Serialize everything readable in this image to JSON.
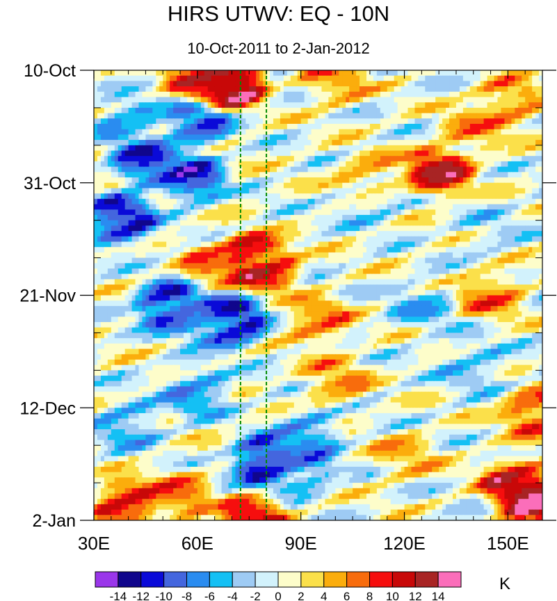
{
  "chart_data": {
    "type": "heatmap",
    "title": "HIRS UTWV: EQ - 10N",
    "subtitle": "10-Oct-2011 to 2-Jan-2012",
    "xlabel": "",
    "ylabel": "",
    "x_range": [
      30,
      160
    ],
    "y_range_days_since_10Oct2011": [
      0,
      84
    ],
    "x_ticks": [
      {
        "value": 30,
        "label": "30E"
      },
      {
        "value": 60,
        "label": "60E"
      },
      {
        "value": 90,
        "label": "90E"
      },
      {
        "value": 120,
        "label": "120E"
      },
      {
        "value": 150,
        "label": "150E"
      }
    ],
    "y_ticks": [
      {
        "value": 0,
        "label": "10-Oct"
      },
      {
        "value": 21,
        "label": "31-Oct"
      },
      {
        "value": 42,
        "label": "21-Nov"
      },
      {
        "value": 63,
        "label": "12-Dec"
      },
      {
        "value": 84,
        "label": "2-Jan"
      }
    ],
    "reference_lines_x": [
      72.5,
      80
    ],
    "colorbar": {
      "units": "K",
      "levels": [
        -14,
        -12,
        -10,
        -8,
        -6,
        -4,
        -2,
        0,
        2,
        4,
        6,
        8,
        10,
        12,
        14
      ],
      "labels": [
        "-14",
        "-12",
        "-10",
        "-8",
        "-6",
        "-4",
        "-2",
        "0",
        "2",
        "4",
        "6",
        "8",
        "10",
        "12",
        "14"
      ],
      "colors": [
        "#9a36ea",
        "#10068c",
        "#0a0ad8",
        "#4466de",
        "#2a8cf0",
        "#14c0f4",
        "#9ecbf4",
        "#d2f2fc",
        "#fdfdca",
        "#fbe04a",
        "#fbad0c",
        "#f86c0c",
        "#f60e0e",
        "#c80808",
        "#a82424",
        "#fb6eba"
      ]
    },
    "features": [
      {
        "lon": 70,
        "day": 2,
        "value": 15
      },
      {
        "lon": 66,
        "day": 3,
        "value": 10
      },
      {
        "lon": 60,
        "day": 1,
        "value": 8
      },
      {
        "lon": 100,
        "day": 2,
        "value": 5
      },
      {
        "lon": 75,
        "day": 35,
        "value": 12
      },
      {
        "lon": 80,
        "day": 37,
        "value": 9
      },
      {
        "lon": 65,
        "day": 36,
        "value": 6
      },
      {
        "lon": 130,
        "day": 19,
        "value": 11
      },
      {
        "lon": 110,
        "day": 20,
        "value": 5
      },
      {
        "lon": 140,
        "day": 11,
        "value": 5
      },
      {
        "lon": 150,
        "day": 6,
        "value": 6
      },
      {
        "lon": 157,
        "day": 80,
        "value": 15
      },
      {
        "lon": 152,
        "day": 77,
        "value": 10
      },
      {
        "lon": 40,
        "day": 81,
        "value": 10
      },
      {
        "lon": 55,
        "day": 79,
        "value": 6
      },
      {
        "lon": 76,
        "day": 84,
        "value": 10
      },
      {
        "lon": 95,
        "day": 47,
        "value": 6
      },
      {
        "lon": 100,
        "day": 58,
        "value": 5
      },
      {
        "lon": 158,
        "day": 64,
        "value": 8
      },
      {
        "lon": 120,
        "day": 72,
        "value": 4
      },
      {
        "lon": 145,
        "day": 42,
        "value": 6
      },
      {
        "lon": 45,
        "day": 17,
        "value": -10
      },
      {
        "lon": 58,
        "day": 20,
        "value": -10
      },
      {
        "lon": 38,
        "day": 28,
        "value": -11
      },
      {
        "lon": 52,
        "day": 44,
        "value": -11
      },
      {
        "lon": 70,
        "day": 47,
        "value": -12
      },
      {
        "lon": 63,
        "day": 46,
        "value": -8
      },
      {
        "lon": 80,
        "day": 73,
        "value": -12
      },
      {
        "lon": 90,
        "day": 74,
        "value": -7
      },
      {
        "lon": 60,
        "day": 60,
        "value": -6
      },
      {
        "lon": 92,
        "day": 68,
        "value": -6
      },
      {
        "lon": 60,
        "day": 10,
        "value": -8
      },
      {
        "lon": 40,
        "day": 10,
        "value": -6
      },
      {
        "lon": 40,
        "day": 66,
        "value": -5
      },
      {
        "lon": 110,
        "day": 25,
        "value": -3
      },
      {
        "lon": 140,
        "day": 55,
        "value": -4
      },
      {
        "lon": 125,
        "day": 44,
        "value": -4
      },
      {
        "lon": 145,
        "day": 30,
        "value": -2
      }
    ]
  }
}
